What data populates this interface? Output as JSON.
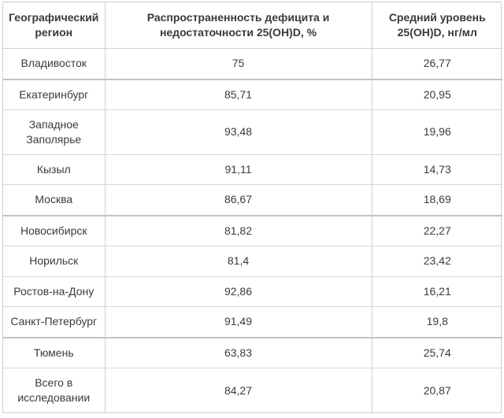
{
  "table": {
    "headers": [
      "Географический регион",
      "Распространенность дефицита и недостаточности 25(OH)D, %",
      "Средний уровень 25(OH)D, нг/мл"
    ],
    "rows": [
      {
        "region": "Владивосток",
        "prevalence": "75",
        "mean_level": "26,77"
      },
      {
        "region": "Екатеринбург",
        "prevalence": "85,71",
        "mean_level": "20,95"
      },
      {
        "region": "Западное Заполярье",
        "prevalence": "93,48",
        "mean_level": "19,96"
      },
      {
        "region": "Кызыл",
        "prevalence": "91,11",
        "mean_level": "14,73"
      },
      {
        "region": "Москва",
        "prevalence": "86,67",
        "mean_level": "18,69"
      },
      {
        "region": "Новосибирск",
        "prevalence": "81,82",
        "mean_level": "22,27"
      },
      {
        "region": "Норильск",
        "prevalence": "81,4",
        "mean_level": "23,42"
      },
      {
        "region": "Ростов-на-Дону",
        "prevalence": "92,86",
        "mean_level": "16,21"
      },
      {
        "region": "Санкт-Петербург",
        "prevalence": "91,49",
        "mean_level": "19,8"
      },
      {
        "region": "Тюмень",
        "prevalence": "63,83",
        "mean_level": "25,74"
      },
      {
        "region": "Всего в исследовании",
        "prevalence": "84,27",
        "mean_level": "20,87"
      }
    ]
  }
}
